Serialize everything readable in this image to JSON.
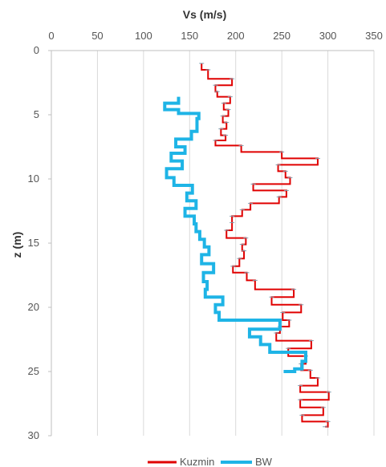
{
  "chart_data": {
    "type": "line",
    "x_axis": {
      "title": "Vs (m/s)",
      "position": "top",
      "range": [
        0,
        350
      ],
      "ticks": [
        0,
        50,
        100,
        150,
        200,
        250,
        300,
        350
      ]
    },
    "y_axis": {
      "title": "z (m)",
      "range": [
        0,
        30
      ],
      "reversed": true,
      "ticks": [
        0,
        5,
        10,
        15,
        20,
        25,
        30
      ]
    },
    "grid": {
      "vertical": true,
      "horizontal": false
    },
    "legend": {
      "position": "bottom",
      "entries": [
        "Kuzmin",
        "BW"
      ]
    },
    "series": [
      {
        "name": "Kuzmin",
        "color": "#e00000",
        "step_profile": [
          [
            1.0,
            163
          ],
          [
            1.5,
            170
          ],
          [
            2.2,
            196
          ],
          [
            2.7,
            178
          ],
          [
            3.2,
            180
          ],
          [
            3.6,
            194
          ],
          [
            4.1,
            187
          ],
          [
            4.6,
            192
          ],
          [
            5.1,
            186
          ],
          [
            5.6,
            190
          ],
          [
            6.1,
            184
          ],
          [
            6.6,
            189
          ],
          [
            7.0,
            178
          ],
          [
            7.4,
            206
          ],
          [
            7.9,
            250
          ],
          [
            8.4,
            289
          ],
          [
            8.9,
            246
          ],
          [
            9.4,
            254
          ],
          [
            9.9,
            259
          ],
          [
            10.4,
            219
          ],
          [
            10.9,
            255
          ],
          [
            11.4,
            247
          ],
          [
            11.9,
            216
          ],
          [
            12.4,
            207
          ],
          [
            12.9,
            196
          ],
          [
            13.4,
            196
          ],
          [
            14.0,
            190
          ],
          [
            14.6,
            211
          ],
          [
            15.1,
            207
          ],
          [
            15.6,
            209
          ],
          [
            16.2,
            204
          ],
          [
            16.8,
            197
          ],
          [
            17.3,
            212
          ],
          [
            17.9,
            221
          ],
          [
            18.6,
            263
          ],
          [
            19.2,
            239
          ],
          [
            19.8,
            271
          ],
          [
            20.4,
            251
          ],
          [
            21.0,
            258
          ],
          [
            21.5,
            248
          ],
          [
            22.0,
            244
          ],
          [
            22.6,
            282
          ],
          [
            23.2,
            257
          ],
          [
            23.8,
            276
          ],
          [
            24.4,
            271
          ],
          [
            24.9,
            281
          ],
          [
            25.5,
            289
          ],
          [
            26.1,
            270
          ],
          [
            26.6,
            301
          ],
          [
            27.2,
            270
          ],
          [
            27.8,
            295
          ],
          [
            28.4,
            272
          ],
          [
            28.9,
            300
          ],
          [
            29.3,
            297
          ]
        ]
      },
      {
        "name": "BW",
        "color": "#1eb4e6",
        "step_profile": [
          [
            3.6,
            138
          ],
          [
            4.1,
            123
          ],
          [
            4.6,
            138
          ],
          [
            4.9,
            160
          ],
          [
            5.3,
            158
          ],
          [
            5.8,
            158
          ],
          [
            6.3,
            152
          ],
          [
            6.9,
            135
          ],
          [
            7.5,
            145
          ],
          [
            8.0,
            130
          ],
          [
            8.6,
            142
          ],
          [
            9.2,
            125
          ],
          [
            9.9,
            133
          ],
          [
            10.5,
            153
          ],
          [
            11.1,
            147
          ],
          [
            11.7,
            157
          ],
          [
            12.3,
            145
          ],
          [
            12.9,
            155
          ],
          [
            13.5,
            157
          ],
          [
            14.1,
            161
          ],
          [
            14.7,
            166
          ],
          [
            15.3,
            171
          ],
          [
            15.9,
            163
          ],
          [
            16.6,
            176
          ],
          [
            17.3,
            165
          ],
          [
            18.0,
            169
          ],
          [
            18.6,
            167
          ],
          [
            19.2,
            186
          ],
          [
            19.8,
            178
          ],
          [
            20.4,
            182
          ],
          [
            21.0,
            248
          ],
          [
            21.7,
            215
          ],
          [
            22.3,
            227
          ],
          [
            22.9,
            237
          ],
          [
            23.5,
            276
          ],
          [
            24.2,
            272
          ],
          [
            24.8,
            264
          ],
          [
            25.0,
            252
          ]
        ]
      }
    ]
  }
}
